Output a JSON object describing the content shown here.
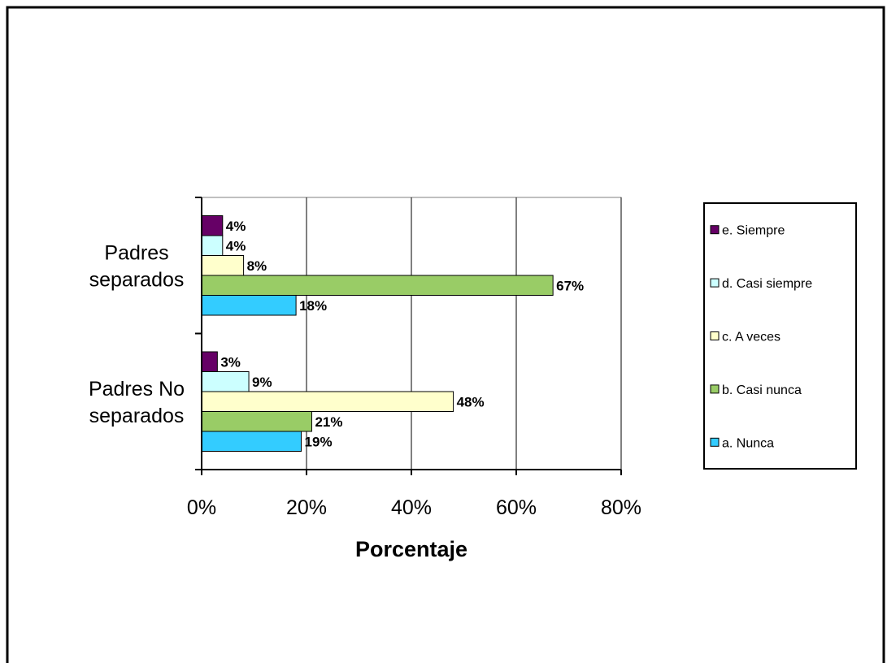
{
  "chart_data": {
    "type": "bar",
    "orientation": "horizontal",
    "title": "",
    "xlabel": "Porcentaje",
    "ylabel": "",
    "categories": [
      "Padres separados",
      "Padres No separados"
    ],
    "category_lines": [
      [
        "Padres",
        "separados"
      ],
      [
        "Padres No",
        "separados"
      ]
    ],
    "series": [
      {
        "name": "e. Siempre",
        "color": "#660066",
        "values": [
          4,
          3
        ],
        "labels": [
          "4%",
          "3%"
        ]
      },
      {
        "name": "d. Casi siempre",
        "color": "#ccffff",
        "values": [
          4,
          9
        ],
        "labels": [
          "4%",
          "9%"
        ]
      },
      {
        "name": "c. A veces",
        "color": "#ffffcc",
        "values": [
          8,
          48
        ],
        "labels": [
          "8%",
          "48%"
        ]
      },
      {
        "name": "b. Casi nunca",
        "color": "#99cc66",
        "values": [
          67,
          21
        ],
        "labels": [
          "67%",
          "21%"
        ]
      },
      {
        "name": "a. Nunca",
        "color": "#33ccff",
        "values": [
          18,
          19
        ],
        "labels": [
          "18%",
          "19%"
        ]
      }
    ],
    "xlim": [
      0,
      80
    ],
    "xticks": [
      0,
      20,
      40,
      60,
      80
    ],
    "xtick_labels": [
      "0%",
      "20%",
      "40%",
      "60%",
      "80%"
    ],
    "grid": true,
    "legend_position": "right"
  }
}
